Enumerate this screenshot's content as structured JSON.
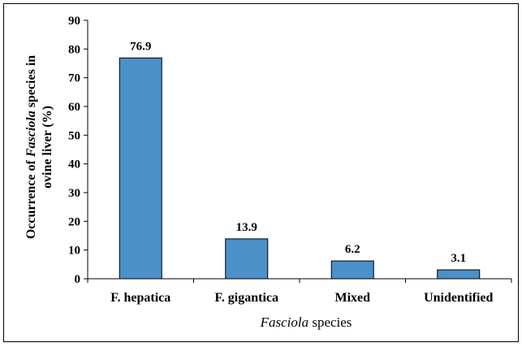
{
  "chart_data": {
    "type": "bar",
    "categories": [
      "F. hepatica",
      "F. gigantica",
      "Mixed",
      "Unidentified"
    ],
    "values": [
      76.9,
      13.9,
      6.2,
      3.1
    ],
    "data_labels": [
      "76.9",
      "13.9",
      "6.2",
      "3.1"
    ],
    "y_ticks": [
      "0",
      "10",
      "20",
      "30",
      "40",
      "50",
      "60",
      "70",
      "80",
      "90"
    ],
    "ylim": [
      0,
      90
    ],
    "ylabel": {
      "prefix": "Occurrence of ",
      "italic": "Fasciola",
      "suffix": " species in",
      "line2": "ovine liver (%)"
    },
    "xlabel": {
      "italic": "Fasciola",
      "suffix": " species"
    },
    "grid": false,
    "legend": "none",
    "colors": {
      "bar_fill": "#4a90c9",
      "bar_stroke": "#000000",
      "axis": "#000000"
    }
  }
}
